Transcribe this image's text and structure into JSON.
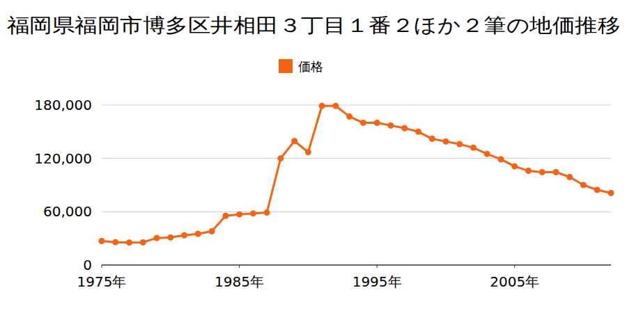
{
  "chart_data": {
    "type": "line",
    "title": "福岡県福岡市博多区井相田３丁目１番２ほか２筆の地価推移",
    "x": [
      1975,
      1976,
      1977,
      1978,
      1979,
      1980,
      1981,
      1982,
      1983,
      1984,
      1985,
      1986,
      1987,
      1988,
      1989,
      1990,
      1991,
      1992,
      1993,
      1994,
      1995,
      1996,
      1997,
      1998,
      1999,
      2000,
      2001,
      2002,
      2003,
      2004,
      2005,
      2006,
      2007,
      2008,
      2009,
      2010,
      2011,
      2012
    ],
    "series": [
      {
        "name": "価格",
        "color": "#f56414",
        "marker": "circle",
        "values": [
          27000,
          25700,
          25300,
          25500,
          30400,
          31000,
          33500,
          35000,
          38000,
          55300,
          57000,
          58000,
          59000,
          120000,
          139500,
          127000,
          179000,
          179000,
          167000,
          160000,
          160000,
          157000,
          154000,
          150000,
          142000,
          139000,
          136000,
          132000,
          125000,
          119000,
          111000,
          106000,
          104500,
          104500,
          99000,
          90000,
          84500,
          81000
        ]
      }
    ],
    "xlim": [
      1975,
      2012
    ],
    "xticks": [
      {
        "value": 1975,
        "label": "1975年"
      },
      {
        "value": 1985,
        "label": "1985年"
      },
      {
        "value": 1995,
        "label": "1995年"
      },
      {
        "value": 2005,
        "label": "2005年"
      }
    ],
    "ylim": [
      0,
      180000
    ],
    "yticks": [
      0,
      {
        "value": 60000,
        "label": "60,000"
      },
      {
        "value": 120000,
        "label": "120,000"
      },
      {
        "value": 180000,
        "label": "180,000"
      }
    ],
    "grid": true,
    "legend": "top"
  }
}
